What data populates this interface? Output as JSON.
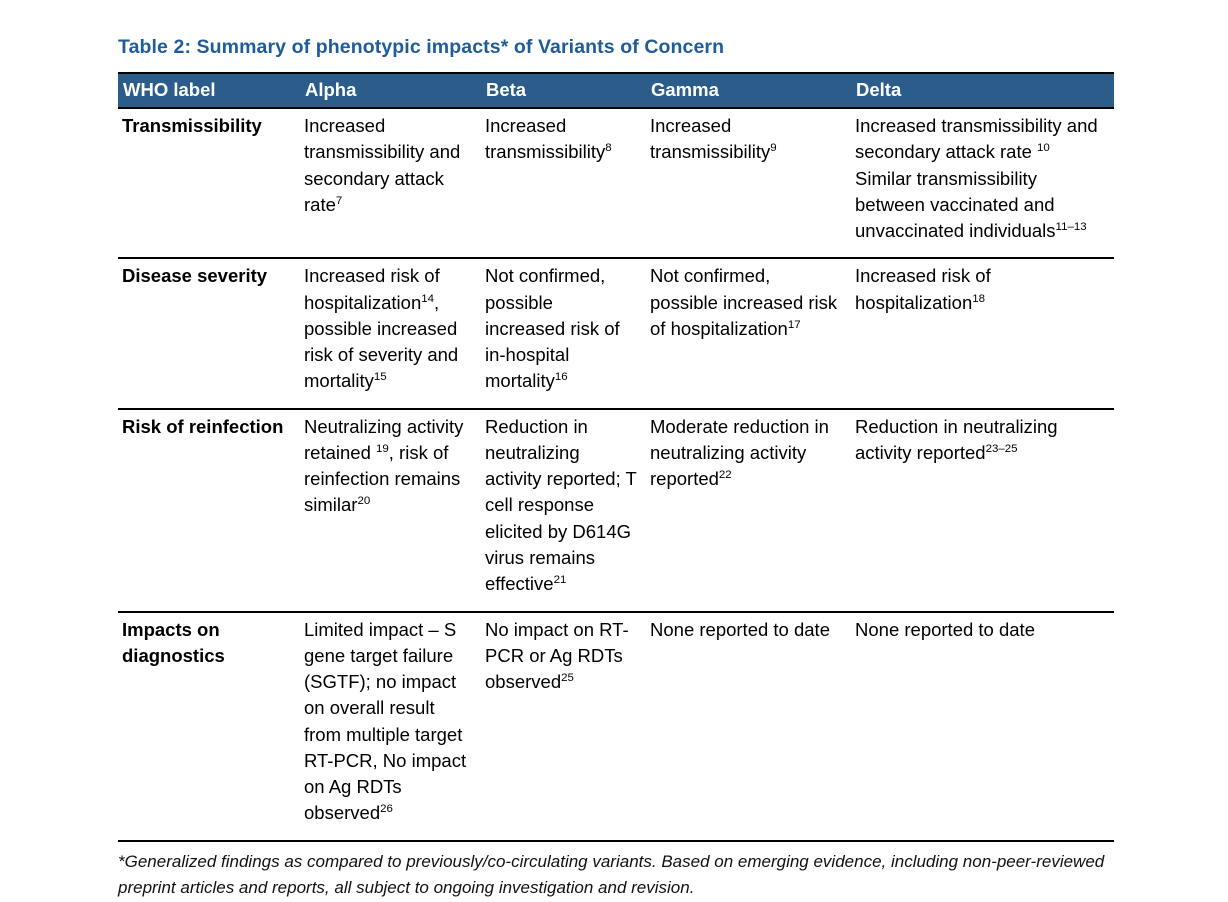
{
  "title": "Table 2: Summary of phenotypic impacts* of Variants of Concern",
  "colors": {
    "title": "#1f5c99",
    "header_bg": "#2c5d8a",
    "header_text": "#ffffff",
    "border": "#000000"
  },
  "table": {
    "headers": [
      "WHO label",
      "Alpha",
      "Beta",
      "Gamma",
      "Delta"
    ],
    "rows": [
      {
        "label": "Transmissibility",
        "cells": [
          [
            "Increased transmissibility and secondary attack rate",
            {
              "sup": "7"
            }
          ],
          [
            "Increased transmissibility",
            {
              "sup": "8"
            }
          ],
          [
            "Increased transmissibility",
            {
              "sup": "9"
            }
          ],
          [
            "Increased transmissibility and secondary attack rate ",
            {
              "sup": "10"
            },
            {
              "br": true
            },
            "Similar transmissibility between vaccinated and unvaccinated individuals",
            {
              "sup": "11–13"
            }
          ]
        ]
      },
      {
        "label": "Disease severity",
        "cells": [
          [
            "Increased risk of hospitalization",
            {
              "sup": "14"
            },
            ", possible increased risk of severity and mortality",
            {
              "sup": "15"
            }
          ],
          [
            "Not confirmed, possible increased risk of in-hospital mortality",
            {
              "sup": "16"
            }
          ],
          [
            "Not confirmed, possible increased risk of hospitalization",
            {
              "sup": "17"
            }
          ],
          [
            "Increased risk of hospitalization",
            {
              "sup": "18"
            }
          ]
        ]
      },
      {
        "label": "Risk of reinfection",
        "cells": [
          [
            "Neutralizing activity retained ",
            {
              "sup": "19"
            },
            ", risk of reinfection remains similar",
            {
              "sup": "20"
            }
          ],
          [
            "Reduction in neutralizing activity reported; T cell response elicited by D614G virus remains effective",
            {
              "sup": "21"
            }
          ],
          [
            "Moderate reduction in neutralizing activity reported",
            {
              "sup": "22"
            }
          ],
          [
            "Reduction in neutralizing activity reported",
            {
              "sup": "23–25"
            }
          ]
        ]
      },
      {
        "label": "Impacts on diagnostics",
        "cells": [
          [
            "Limited impact – S gene target failure (SGTF); no impact on overall result from multiple target RT-PCR, No impact on Ag RDTs observed",
            {
              "sup": "26"
            }
          ],
          [
            "No impact on RT-PCR or Ag RDTs observed",
            {
              "sup": "25"
            }
          ],
          [
            "None reported to date"
          ],
          [
            "None reported to date"
          ]
        ]
      }
    ]
  },
  "footnote": "*Generalized findings as compared to previously/co-circulating variants. Based on emerging evidence, including non-peer-reviewed preprint articles and reports, all subject to ongoing investigation and revision."
}
